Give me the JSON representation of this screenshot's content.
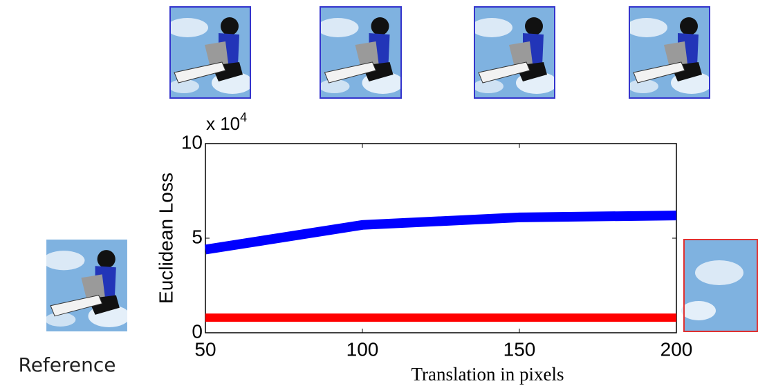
{
  "chart_data": {
    "type": "line",
    "x_label": "Translation in pixels",
    "y_label": "Euclidean Loss",
    "scale_label": "x 10",
    "scale_exponent": "4",
    "reference_label": "Reference",
    "x": [
      50,
      100,
      150,
      200
    ],
    "series": [
      {
        "color": "#0000ff",
        "values": [
          4.4,
          5.7,
          6.1,
          6.2
        ]
      },
      {
        "color": "#ff0000",
        "values": [
          0.8,
          0.8,
          0.8,
          0.8
        ]
      }
    ],
    "xlim": [
      50,
      200
    ],
    "xticks": [
      50,
      100,
      150,
      200
    ],
    "ylim": [
      0,
      10
    ],
    "yticks": [
      0,
      5,
      10
    ]
  }
}
